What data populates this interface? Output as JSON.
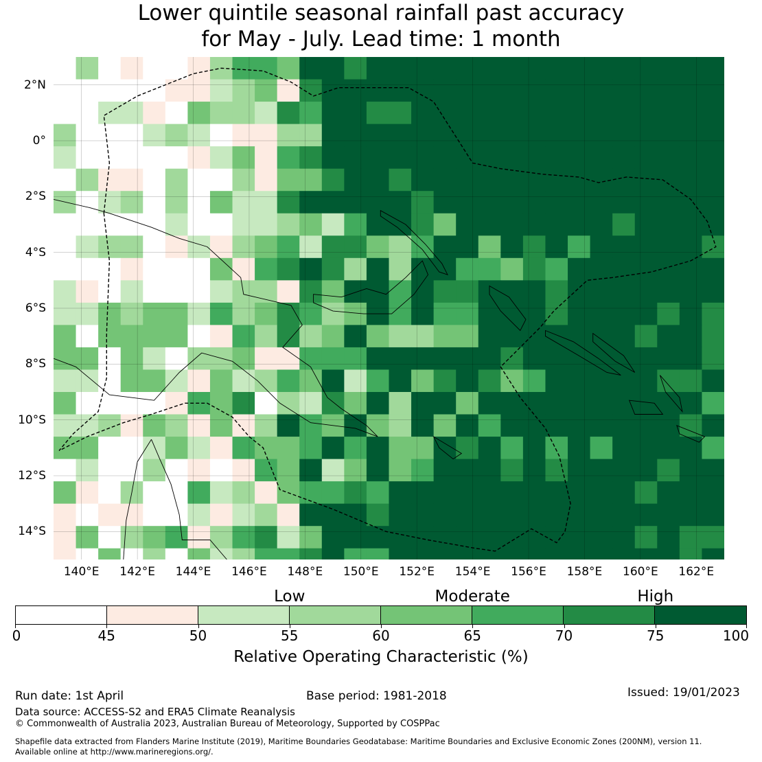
{
  "title": {
    "line1": "Lower quintile seasonal rainfall past accuracy",
    "line2": "for May - July. Lead time: 1 month"
  },
  "map": {
    "lon_range": [
      139,
      163
    ],
    "lat_range": [
      -15,
      3
    ],
    "lat_ticks": [
      {
        "value": 2,
        "label": "2°N"
      },
      {
        "value": 0,
        "label": "0°"
      },
      {
        "value": -2,
        "label": "2°S"
      },
      {
        "value": -4,
        "label": "4°S"
      },
      {
        "value": -6,
        "label": "6°S"
      },
      {
        "value": -8,
        "label": "8°S"
      },
      {
        "value": -10,
        "label": "10°S"
      },
      {
        "value": -12,
        "label": "12°S"
      },
      {
        "value": -14,
        "label": "14°S"
      }
    ],
    "lon_ticks": [
      {
        "value": 140,
        "label": "140°E"
      },
      {
        "value": 142,
        "label": "142°E"
      },
      {
        "value": 144,
        "label": "144°E"
      },
      {
        "value": 146,
        "label": "146°E"
      },
      {
        "value": 148,
        "label": "148°E"
      },
      {
        "value": 150,
        "label": "150°E"
      },
      {
        "value": 152,
        "label": "152°E"
      },
      {
        "value": 154,
        "label": "154°E"
      },
      {
        "value": 156,
        "label": "156°E"
      },
      {
        "value": 158,
        "label": "158°E"
      },
      {
        "value": 160,
        "label": "160°E"
      },
      {
        "value": 162,
        "label": "162°E"
      }
    ]
  },
  "legend": {
    "categories": [
      {
        "label": "Low",
        "value": 55
      },
      {
        "label": "Moderate",
        "value": 65
      },
      {
        "label": "High",
        "value": 75
      }
    ],
    "segments": [
      {
        "from": 0,
        "to": 45,
        "color": "#ffffff"
      },
      {
        "from": 45,
        "to": 50,
        "color": "#fdebe2"
      },
      {
        "from": 50,
        "to": 55,
        "color": "#c7e9c0"
      },
      {
        "from": 55,
        "to": 60,
        "color": "#a1d99b"
      },
      {
        "from": 60,
        "to": 65,
        "color": "#74c476"
      },
      {
        "from": 65,
        "to": 70,
        "color": "#41ab5d"
      },
      {
        "from": 70,
        "to": 75,
        "color": "#238b45"
      },
      {
        "from": 75,
        "to": 100,
        "color": "#005a32"
      }
    ],
    "tick_labels": [
      "0",
      "45",
      "50",
      "55",
      "60",
      "65",
      "70",
      "75",
      "100"
    ],
    "title": "Relative Operating Characteristic (%)"
  },
  "footer": {
    "run_date": "Run date: 1st April",
    "base_period": "Base period: 1981-2018",
    "issued": "Issued: 19/01/2023",
    "data_source": "Data source: ACCESS-S2 and ERA5 Climate Reanalysis",
    "copyright": "© Commonwealth of Australia 2023, Australian Bureau of Meteorology, Supported by COSPPac",
    "shapefile_line1": "Shapefile data extracted from Flanders Marine Institute (2019), Maritime Boundaries Geodatabase: Maritime Boundaries and Exclusive Economic Zones (200NM), version 11.",
    "shapefile_line2": "Available online at http://www.marineregions.org/."
  }
}
